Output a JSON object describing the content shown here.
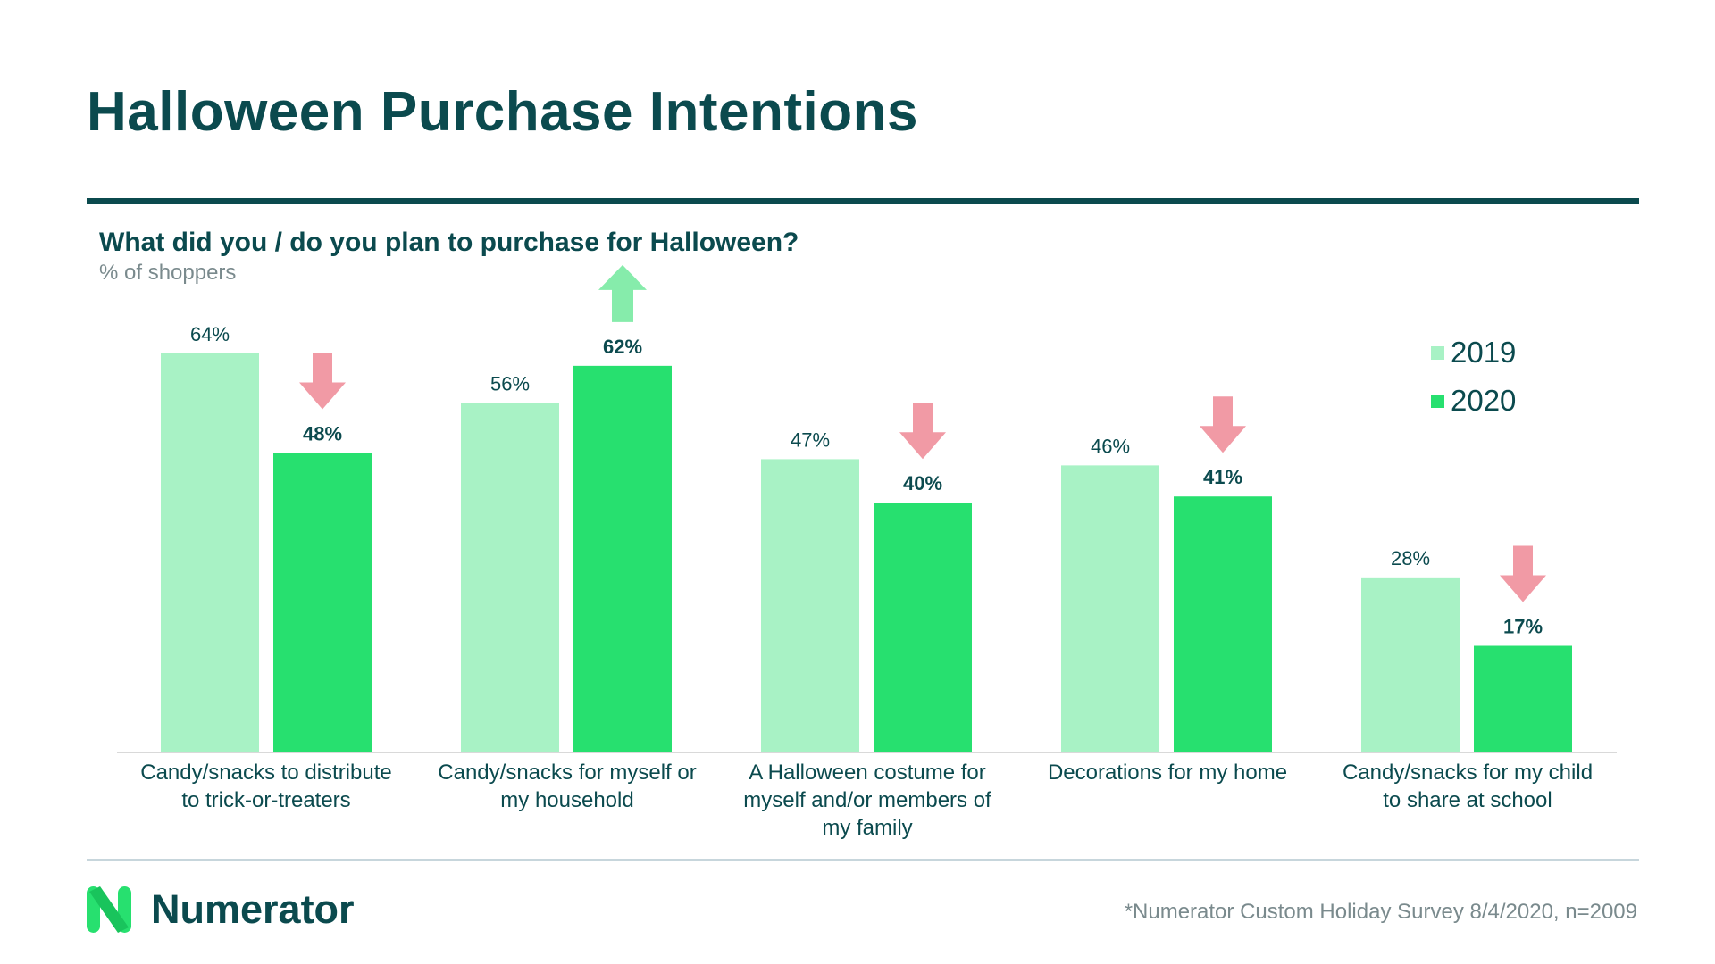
{
  "header": {
    "title": "Halloween Purchase Intentions"
  },
  "chart_header": {
    "question": "What did you / do you plan to purchase for Halloween?",
    "subtitle": "% of shoppers"
  },
  "colors": {
    "brand_dark": "#0b4a4e",
    "series_2019": "#a8f2c5",
    "series_2020": "#27e06f",
    "up_arrow": "#86ecab",
    "down_arrow": "#f19aa5"
  },
  "chart_data": {
    "type": "bar",
    "title": "What did you / do you plan to purchase for Halloween?",
    "subtitle": "% of shoppers",
    "xlabel": "",
    "ylabel": "",
    "unit": "%",
    "ylim": [
      0,
      70
    ],
    "grid": false,
    "legend_position": "top-right",
    "categories": [
      "Candy/snacks to distribute to trick-or-treaters",
      "Candy/snacks for myself or my household",
      "A Halloween costume for myself and/or members of my family",
      "Decorations for my home",
      "Candy/snacks for my child to share at school"
    ],
    "series": [
      {
        "name": "2019",
        "values": [
          64,
          56,
          47,
          46,
          28
        ],
        "color": "#a8f2c5",
        "labels_bold": false
      },
      {
        "name": "2020",
        "values": [
          48,
          62,
          40,
          41,
          17
        ],
        "color": "#27e06f",
        "labels_bold": true
      }
    ],
    "value_labels": [
      [
        "64%",
        "56%",
        "47%",
        "46%",
        "28%"
      ],
      [
        "48%",
        "62%",
        "40%",
        "41%",
        "17%"
      ]
    ],
    "change_indicators": [
      "down",
      "up",
      "down",
      "down",
      "down"
    ]
  },
  "category_labels": [
    {
      "line1": "Candy/snacks to distribute",
      "line2": "to trick-or-treaters",
      "line3": ""
    },
    {
      "line1": "Candy/snacks for myself or",
      "line2": "my household",
      "line3": ""
    },
    {
      "line1": "A Halloween costume for",
      "line2": "myself and/or members of",
      "line3": "my family"
    },
    {
      "line1": "Decorations for my home",
      "line2": "",
      "line3": ""
    },
    {
      "line1": "Candy/snacks for my child",
      "line2": "to share at school",
      "line3": ""
    }
  ],
  "legend": [
    {
      "label": "2019",
      "color": "#a8f2c5"
    },
    {
      "label": "2020",
      "color": "#27e06f"
    }
  ],
  "footer": {
    "brand": "Numerator",
    "source": "*Numerator Custom Holiday Survey 8/4/2020, n=2009"
  }
}
